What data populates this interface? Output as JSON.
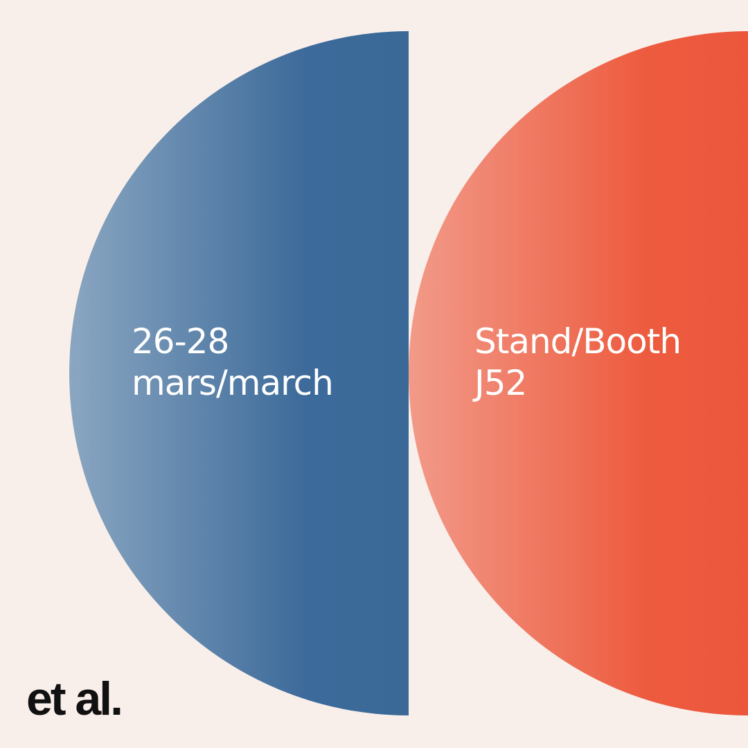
{
  "left_panel": {
    "lines": [
      "26-28",
      "mars/march"
    ]
  },
  "right_panel": {
    "lines": [
      "Stand/Booth",
      "J52"
    ]
  },
  "logo": "et al."
}
